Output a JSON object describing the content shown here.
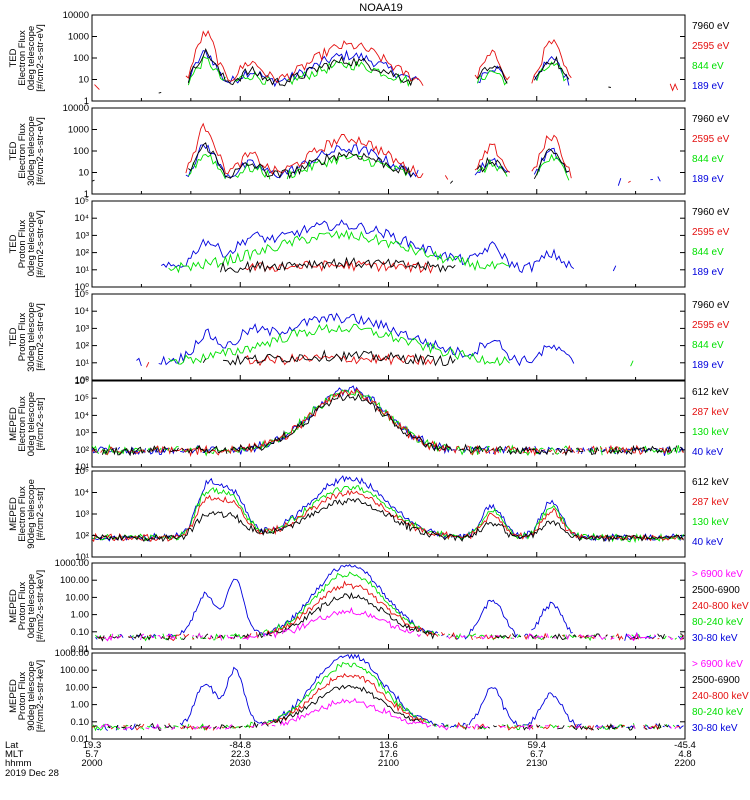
{
  "title": "NOAA19",
  "colors": {
    "black": "#000000",
    "red": "#e41010",
    "green": "#00e000",
    "blue": "#0000dd",
    "magenta": "#ff00ff"
  },
  "footer": {
    "row_labels": [
      "Lat",
      "MLT",
      "hhmm",
      "2019 Dec 28"
    ],
    "ticks": [
      {
        "time": "2000",
        "lat": "19.3",
        "mlt": "5.7"
      },
      {
        "time": "2030",
        "lat": "-84.8",
        "mlt": "22.3"
      },
      {
        "time": "2100",
        "lat": "13.6",
        "mlt": "17.6"
      },
      {
        "time": "2130",
        "lat": "59.4",
        "mlt": "6.7"
      },
      {
        "time": "2200",
        "lat": "-45.4",
        "mlt": "4.8"
      }
    ]
  },
  "chart_data": [
    {
      "type": "line",
      "ylabel": [
        "TED",
        "Electron Flux",
        "0deg telescope",
        "[#/cm2-s-str-eV]"
      ],
      "yscale": "log",
      "ylim": [
        1,
        10000
      ],
      "yticks": [
        "1",
        "10",
        "100",
        "1000",
        "10000"
      ],
      "xlim": [
        "2000",
        "2200"
      ],
      "legend": [
        {
          "label": "7960 eV",
          "color": "black"
        },
        {
          "label": "2595 eV",
          "color": "red"
        },
        {
          "label": "844 eV",
          "color": "green"
        },
        {
          "label": "189 eV",
          "color": "blue"
        }
      ]
    },
    {
      "type": "line",
      "ylabel": [
        "TED",
        "Electron Flux",
        "30deg telescope",
        "[#/cm2-s-str-eV]"
      ],
      "yscale": "log",
      "ylim": [
        1,
        10000
      ],
      "yticks": [
        "1",
        "10",
        "100",
        "1000",
        "10000"
      ],
      "xlim": [
        "2000",
        "2200"
      ],
      "legend": [
        {
          "label": "7960 eV",
          "color": "black"
        },
        {
          "label": "2595 eV",
          "color": "red"
        },
        {
          "label": "844 eV",
          "color": "green"
        },
        {
          "label": "189 eV",
          "color": "blue"
        }
      ]
    },
    {
      "type": "line",
      "ylabel": [
        "TED",
        "Proton Flux",
        "0deg telescope",
        "[#/cm2-s-str-eV]"
      ],
      "yscale": "log",
      "ylim": [
        1,
        100000
      ],
      "yticks": [
        "10⁰",
        "10¹",
        "10²",
        "10³",
        "10⁴",
        "10⁵"
      ],
      "xlim": [
        "2000",
        "2200"
      ],
      "legend": [
        {
          "label": "7960 eV",
          "color": "black"
        },
        {
          "label": "2595 eV",
          "color": "red"
        },
        {
          "label": "844 eV",
          "color": "green"
        },
        {
          "label": "189 eV",
          "color": "blue"
        }
      ]
    },
    {
      "type": "line",
      "ylabel": [
        "TED",
        "Proton Flux",
        "30deg telescope",
        "[#/cm2-s-str-eV]"
      ],
      "yscale": "log",
      "ylim": [
        1,
        100000
      ],
      "yticks": [
        "10⁰",
        "10¹",
        "10²",
        "10³",
        "10⁴",
        "10⁵"
      ],
      "xlim": [
        "2000",
        "2200"
      ],
      "legend": [
        {
          "label": "7960 eV",
          "color": "black"
        },
        {
          "label": "2595 eV",
          "color": "red"
        },
        {
          "label": "844 eV",
          "color": "green"
        },
        {
          "label": "189 eV",
          "color": "blue"
        }
      ]
    },
    {
      "type": "line",
      "ylabel": [
        "MEPED",
        "Electron Flux",
        "0deg telescope",
        "[#/cm2-s-str]"
      ],
      "yscale": "log",
      "ylim": [
        10,
        1000000
      ],
      "yticks": [
        "10¹",
        "10²",
        "10³",
        "10⁴",
        "10⁵",
        "10⁶"
      ],
      "xlim": [
        "2000",
        "2200"
      ],
      "legend": [
        {
          "label": "612 keV",
          "color": "black"
        },
        {
          "label": "287 keV",
          "color": "red"
        },
        {
          "label": "130 keV",
          "color": "green"
        },
        {
          "label": "40 keV",
          "color": "blue"
        }
      ]
    },
    {
      "type": "line",
      "ylabel": [
        "MEPED",
        "Electron Flux",
        "90deg telescope",
        "[#/cm2-s-str]"
      ],
      "yscale": "log",
      "ylim": [
        10,
        100000
      ],
      "yticks": [
        "10¹",
        "10²",
        "10³",
        "10⁴",
        "10⁵"
      ],
      "xlim": [
        "2000",
        "2200"
      ],
      "legend": [
        {
          "label": "612 keV",
          "color": "black"
        },
        {
          "label": "287 keV",
          "color": "red"
        },
        {
          "label": "130 keV",
          "color": "green"
        },
        {
          "label": "40 keV",
          "color": "blue"
        }
      ]
    },
    {
      "type": "line",
      "ylabel": [
        "MEPED",
        "Proton Flux",
        "0deg telescope",
        "[#/cm2-s-str-keV]"
      ],
      "yscale": "log",
      "ylim": [
        0.01,
        1000
      ],
      "yticks": [
        "0.01",
        "0.10",
        "1.00",
        "10.00",
        "100.00",
        "1000.00"
      ],
      "xlim": [
        "2000",
        "2200"
      ],
      "legend": [
        {
          "label": "> 6900 keV",
          "color": "magenta"
        },
        {
          "label": "2500-6900",
          "color": "black"
        },
        {
          "label": "240-800 keV",
          "color": "red"
        },
        {
          "label": "80-240 keV",
          "color": "green"
        },
        {
          "label": "30-80 keV",
          "color": "blue"
        }
      ]
    },
    {
      "type": "line",
      "ylabel": [
        "MEPED",
        "Proton Flux",
        "90deg telescope",
        "[#/cm2-s-str-keV]"
      ],
      "yscale": "log",
      "ylim": [
        0.01,
        1000
      ],
      "yticks": [
        "0.01",
        "0.10",
        "1.00",
        "10.00",
        "100.00",
        "1000.00"
      ],
      "xlim": [
        "2000",
        "2200"
      ],
      "legend": [
        {
          "label": "> 6900 keV",
          "color": "magenta"
        },
        {
          "label": "2500-6900",
          "color": "black"
        },
        {
          "label": "240-800 keV",
          "color": "red"
        },
        {
          "label": "80-240 keV",
          "color": "green"
        },
        {
          "label": "30-80 keV",
          "color": "blue"
        }
      ]
    }
  ]
}
